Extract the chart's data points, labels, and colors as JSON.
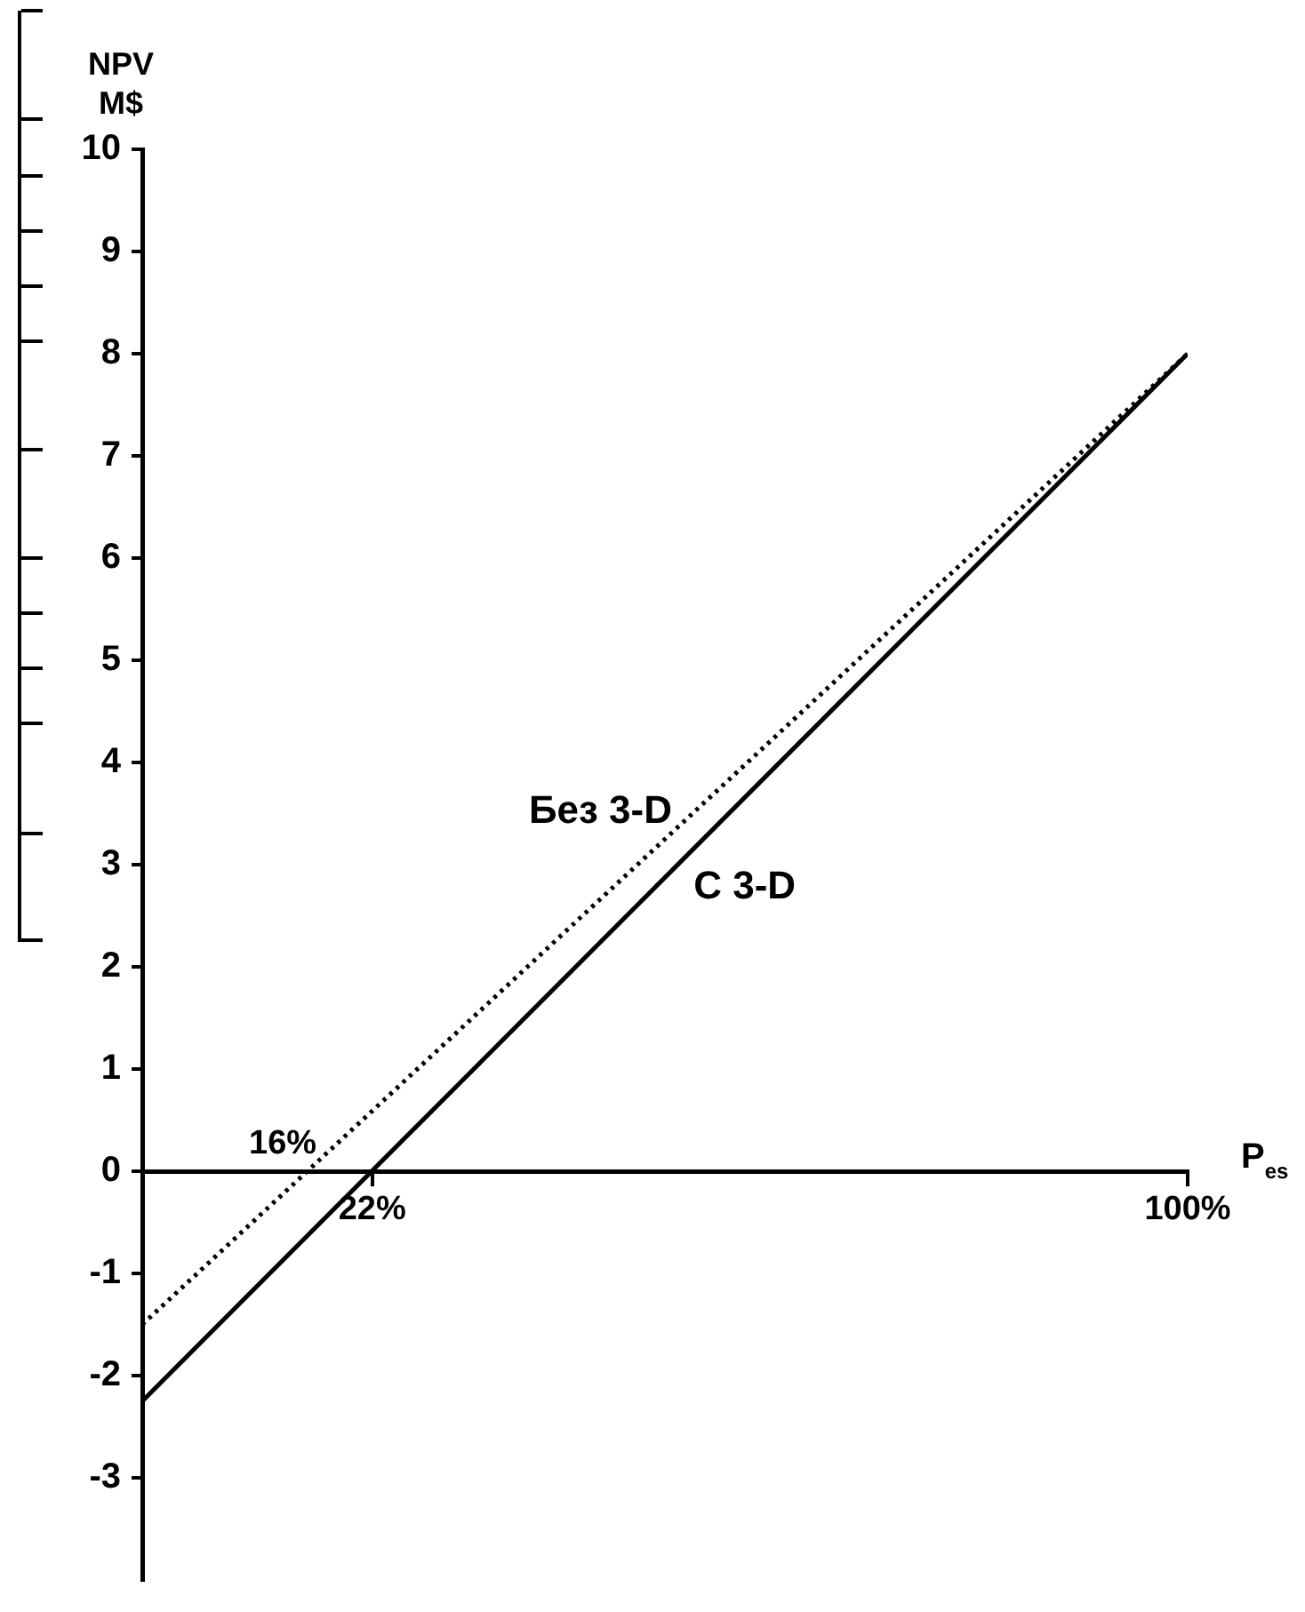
{
  "chart_data": {
    "type": "line",
    "xlabel": "P$_{es}$",
    "ylabel": "NPV M$",
    "x": [
      0,
      100
    ],
    "xlim": [
      0,
      100
    ],
    "ylim": [
      -4,
      10
    ],
    "xticks": [
      {
        "value": 22,
        "label": "22%"
      },
      {
        "value": 100,
        "label": "100%"
      }
    ],
    "annotations": [
      {
        "text": "16%",
        "x": 16,
        "y": 0
      }
    ],
    "yticks": [
      -3,
      -2,
      -1,
      0,
      1,
      2,
      3,
      4,
      5,
      6,
      7,
      8,
      9,
      10
    ],
    "grid": false,
    "legend": false,
    "marker": "none",
    "series": [
      {
        "name": "Без 3-D",
        "color": "#000000",
        "line_style": "dotted",
        "values": [
          -1.5,
          8
        ]
      },
      {
        "name": "С 3-D",
        "color": "#000000",
        "line_style": "solid",
        "values": [
          -2.25,
          8
        ]
      }
    ]
  }
}
